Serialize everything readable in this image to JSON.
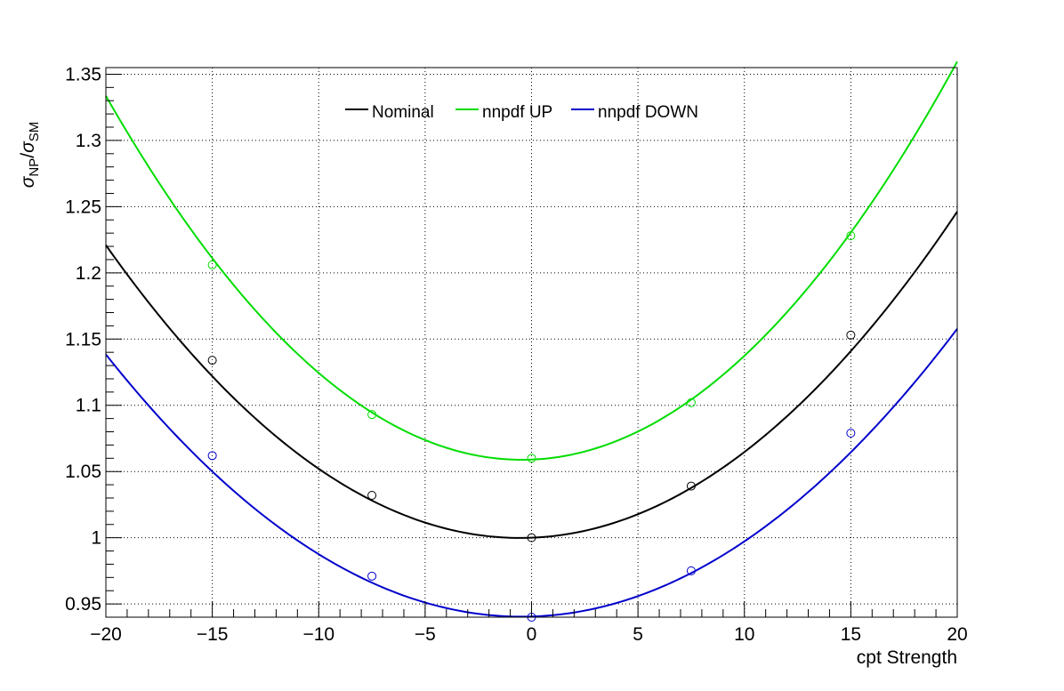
{
  "chart_data": {
    "type": "line",
    "xlabel": "cpt Strength",
    "ylabel": {
      "symbol": "σ",
      "numerator_sub": "NP",
      "slash": "/",
      "denominator_sub": "SM"
    },
    "xlim": [
      -20,
      20
    ],
    "ylim": [
      0.94,
      1.355
    ],
    "grid": true,
    "legend_placement": "top-center",
    "x_ticks": [
      -20,
      -15,
      -10,
      -5,
      0,
      5,
      10,
      15,
      20
    ],
    "x_tick_labels": [
      "−20",
      "−15",
      "−10",
      "−5",
      "0",
      "5",
      "10",
      "15",
      "20"
    ],
    "y_ticks": [
      0.95,
      1.0,
      1.05,
      1.1,
      1.15,
      1.2,
      1.25,
      1.3,
      1.35
    ],
    "y_tick_labels": [
      "0.95",
      "1",
      "1.05",
      "1.1",
      "1.15",
      "1.2",
      "1.25",
      "1.3",
      "1.35"
    ],
    "series": [
      {
        "name": "Nominal",
        "color": "#000000",
        "markers": {
          "x": [
            -15,
            -7.5,
            0,
            7.5,
            15
          ],
          "y": [
            1.134,
            1.032,
            1.0,
            1.039,
            1.153
          ]
        },
        "fit": {
          "a": 0.000584,
          "b": 0.000633,
          "c": 1.0,
          "range": [
            -20,
            20
          ]
        }
      },
      {
        "name": "nnpdf UP",
        "color": "#00dd00",
        "markers": {
          "x": [
            -15,
            -7.5,
            0,
            7.5,
            15
          ],
          "y": [
            1.206,
            1.093,
            1.06,
            1.102,
            1.228
          ]
        },
        "fit": {
          "a": 0.000719,
          "b": 0.000646,
          "c": 1.059,
          "range": [
            -20,
            20
          ]
        }
      },
      {
        "name": "nnpdf DOWN",
        "color": "#0000cc",
        "markers": {
          "x": [
            -15,
            -7.5,
            0,
            7.5,
            15
          ],
          "y": [
            1.062,
            0.971,
            0.94,
            0.975,
            1.079
          ]
        },
        "fit": {
          "a": 0.000519,
          "b": 0.000484,
          "c": 0.9405,
          "range": [
            -20,
            20
          ]
        }
      }
    ]
  }
}
